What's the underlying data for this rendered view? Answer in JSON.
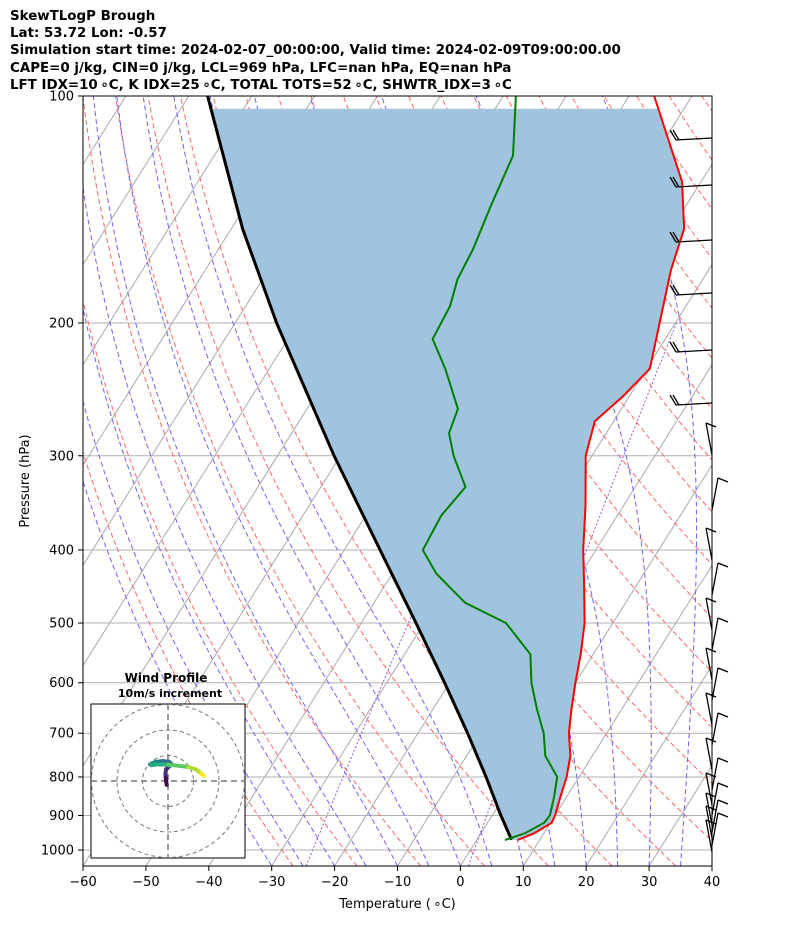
{
  "header": {
    "line1": "SkewTLogP Brough",
    "line2": "Lat: 53.72   Lon: -0.57",
    "line3": "Simulation start time: 2024-02-07_00:00:00, Valid time: 2024-02-09T09:00:00.00",
    "line4": "CAPE=0 j/kg, CIN=0 j/kg, LCL=969 hPa, LFC=nan hPa, EQ=nan hPa",
    "line5": "LFT IDX=10 ∘C, K IDX=25 ∘C, TOTAL TOTS=52 ∘C, SHWTR_IDX=3 ∘C"
  },
  "chart_data": {
    "type": "skewt-logp",
    "xlabel": "Temperature ( ∘C)",
    "ylabel": "Pressure (hPa)",
    "xlim": [
      -60,
      40
    ],
    "ylim": [
      1050,
      100
    ],
    "y_scale": "log",
    "x_ticks": [
      -60,
      -50,
      -40,
      -30,
      -20,
      -10,
      0,
      10,
      20,
      30,
      40
    ],
    "y_ticks": [
      1000,
      900,
      800,
      700,
      600,
      500,
      400,
      300,
      200,
      100
    ],
    "grid": true,
    "colors": {
      "temperature": "#ff0000",
      "dewpoint": "#008000",
      "parcel": "#000000",
      "cape_fill": "#a0c4de",
      "dry_adiabats": "#ff6666",
      "moist_adiabats": "#6666ff",
      "mixing_ratio": "#9955cc",
      "isotherms": "#aaaaaa"
    },
    "temperature_profile": [
      {
        "p": 970,
        "t": 6.5
      },
      {
        "p": 950,
        "t": 8.5
      },
      {
        "p": 920,
        "t": 10.2
      },
      {
        "p": 900,
        "t": 10.0
      },
      {
        "p": 850,
        "t": 9.0
      },
      {
        "p": 800,
        "t": 8.0
      },
      {
        "p": 750,
        "t": 6.5
      },
      {
        "p": 700,
        "t": 4.0
      },
      {
        "p": 650,
        "t": 2.0
      },
      {
        "p": 600,
        "t": 0.0
      },
      {
        "p": 550,
        "t": -2.0
      },
      {
        "p": 500,
        "t": -4.5
      },
      {
        "p": 450,
        "t": -8.0
      },
      {
        "p": 400,
        "t": -12.0
      },
      {
        "p": 350,
        "t": -16.0
      },
      {
        "p": 300,
        "t": -21.0
      },
      {
        "p": 270,
        "t": -23.0
      },
      {
        "p": 250,
        "t": -21.0
      },
      {
        "p": 230,
        "t": -19.5
      },
      {
        "p": 200,
        "t": -22.5
      },
      {
        "p": 170,
        "t": -26.0
      },
      {
        "p": 150,
        "t": -28.0
      },
      {
        "p": 130,
        "t": -33.0
      },
      {
        "p": 100,
        "t": -46.0
      }
    ],
    "dewpoint_profile": [
      {
        "p": 970,
        "t": 4.5
      },
      {
        "p": 950,
        "t": 7.0
      },
      {
        "p": 920,
        "t": 9.0
      },
      {
        "p": 900,
        "t": 9.2
      },
      {
        "p": 850,
        "t": 8.0
      },
      {
        "p": 800,
        "t": 6.5
      },
      {
        "p": 750,
        "t": 2.5
      },
      {
        "p": 700,
        "t": 0.0
      },
      {
        "p": 650,
        "t": -3.5
      },
      {
        "p": 600,
        "t": -7.0
      },
      {
        "p": 550,
        "t": -10.0
      },
      {
        "p": 500,
        "t": -17.0
      },
      {
        "p": 470,
        "t": -25.5
      },
      {
        "p": 430,
        "t": -33.0
      },
      {
        "p": 400,
        "t": -37.5
      },
      {
        "p": 360,
        "t": -38.0
      },
      {
        "p": 330,
        "t": -37.0
      },
      {
        "p": 300,
        "t": -42.0
      },
      {
        "p": 280,
        "t": -45.0
      },
      {
        "p": 260,
        "t": -46.0
      },
      {
        "p": 230,
        "t": -52.0
      },
      {
        "p": 210,
        "t": -57.0
      },
      {
        "p": 190,
        "t": -57.5
      },
      {
        "p": 175,
        "t": -59.0
      },
      {
        "p": 160,
        "t": -59.5
      },
      {
        "p": 140,
        "t": -61.0
      },
      {
        "p": 120,
        "t": -62.5
      },
      {
        "p": 100,
        "t": -68.0
      }
    ],
    "parcel_profile": [
      {
        "p": 969,
        "t": 5.5
      },
      {
        "p": 900,
        "t": 1.4
      },
      {
        "p": 800,
        "t": -4.8
      },
      {
        "p": 700,
        "t": -12.1
      },
      {
        "p": 600,
        "t": -20.8
      },
      {
        "p": 500,
        "t": -31.3
      },
      {
        "p": 400,
        "t": -44.3
      },
      {
        "p": 300,
        "t": -61.0
      },
      {
        "p": 200,
        "t": -83.4
      },
      {
        "p": 150,
        "t": -98.2
      },
      {
        "p": 100,
        "t": -117.0
      }
    ],
    "hodograph": {
      "title": "Wind Profile",
      "subtitle": "10m/s increment",
      "ring_increment": 10,
      "colormap": "viridis",
      "points": [
        {
          "u": -0.5,
          "v": -1.5
        },
        {
          "u": -0.8,
          "v": 0.5
        },
        {
          "u": -1.0,
          "v": 2.5
        },
        {
          "u": -0.8,
          "v": 4.5
        },
        {
          "u": 0.5,
          "v": 5.8
        },
        {
          "u": 1.5,
          "v": 6.5
        },
        {
          "u": 0.5,
          "v": 7.5
        },
        {
          "u": -2.0,
          "v": 7.8
        },
        {
          "u": -5.0,
          "v": 7.5
        },
        {
          "u": -7.0,
          "v": 6.5
        },
        {
          "u": -6.5,
          "v": 6.2
        },
        {
          "u": -4.0,
          "v": 6.5
        },
        {
          "u": 0.0,
          "v": 6.4
        },
        {
          "u": 4.0,
          "v": 6.0
        },
        {
          "u": 8.0,
          "v": 5.5
        },
        {
          "u": 11.0,
          "v": 4.5
        },
        {
          "u": 13.0,
          "v": 3.0
        },
        {
          "u": 14.0,
          "v": 2.0
        }
      ]
    }
  }
}
